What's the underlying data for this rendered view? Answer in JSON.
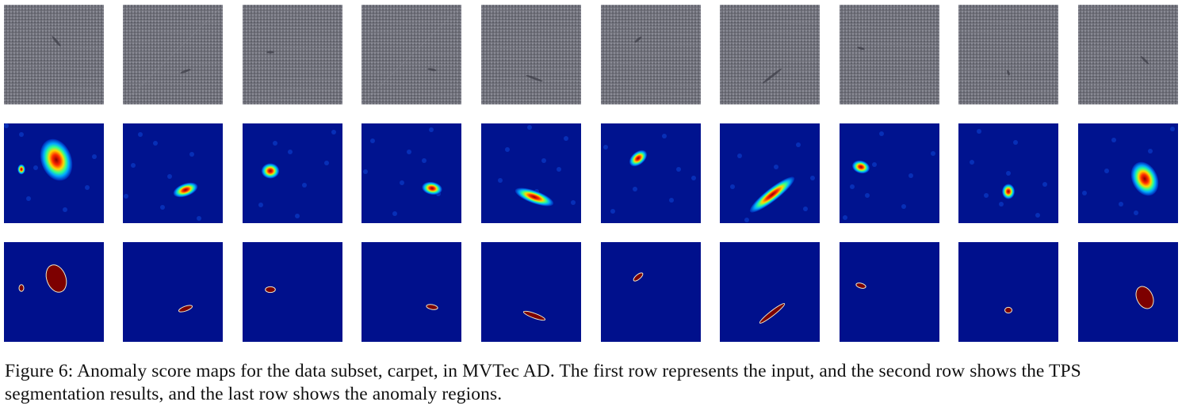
{
  "figure": {
    "caption": "Figure 6: Anomaly score maps for the data subset, carpet, in MVTec AD. The first row represents the input, and the second row shows the TPS segmentation results, and the last row shows the anomaly regions.",
    "rows": [
      {
        "name": "input",
        "kind": "carpet-image"
      },
      {
        "name": "tps-segmentation",
        "kind": "score-heatmap"
      },
      {
        "name": "anomaly-regions",
        "kind": "binary-mask"
      }
    ],
    "columns": 10,
    "colors": {
      "carpet_base": "#6d6e78",
      "heatmap_background": "#00138f",
      "mask_background": "#00108c",
      "mask_region": "#7d0000",
      "mask_outline": "#f0e8c8"
    }
  }
}
